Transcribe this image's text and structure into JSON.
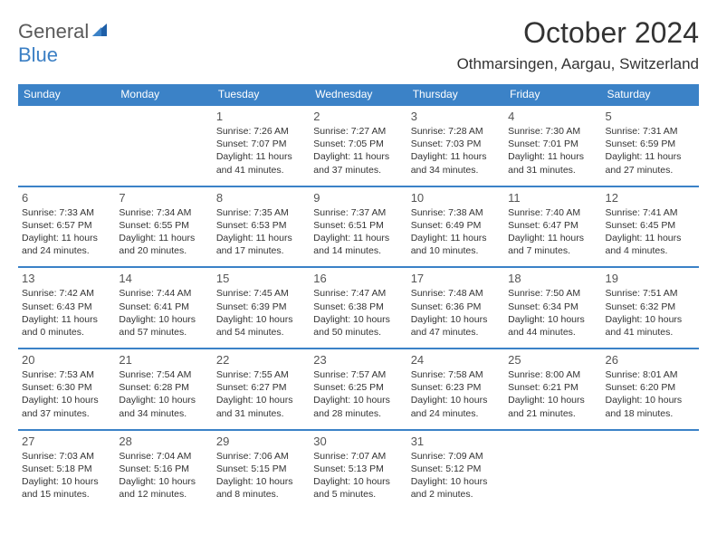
{
  "logo": {
    "text1": "General",
    "text2": "Blue"
  },
  "title": "October 2024",
  "location": "Othmarsingen, Aargau, Switzerland",
  "colors": {
    "header_bg": "#3b82c7",
    "header_text": "#ffffff",
    "border": "#3b82c7",
    "logo_gray": "#5a5a5a",
    "logo_blue": "#3b7fc4",
    "text": "#333333",
    "background": "#ffffff"
  },
  "weekdays": [
    "Sunday",
    "Monday",
    "Tuesday",
    "Wednesday",
    "Thursday",
    "Friday",
    "Saturday"
  ],
  "weeks": [
    [
      null,
      null,
      {
        "n": "1",
        "sr": "Sunrise: 7:26 AM",
        "ss": "Sunset: 7:07 PM",
        "dl": "Daylight: 11 hours and 41 minutes."
      },
      {
        "n": "2",
        "sr": "Sunrise: 7:27 AM",
        "ss": "Sunset: 7:05 PM",
        "dl": "Daylight: 11 hours and 37 minutes."
      },
      {
        "n": "3",
        "sr": "Sunrise: 7:28 AM",
        "ss": "Sunset: 7:03 PM",
        "dl": "Daylight: 11 hours and 34 minutes."
      },
      {
        "n": "4",
        "sr": "Sunrise: 7:30 AM",
        "ss": "Sunset: 7:01 PM",
        "dl": "Daylight: 11 hours and 31 minutes."
      },
      {
        "n": "5",
        "sr": "Sunrise: 7:31 AM",
        "ss": "Sunset: 6:59 PM",
        "dl": "Daylight: 11 hours and 27 minutes."
      }
    ],
    [
      {
        "n": "6",
        "sr": "Sunrise: 7:33 AM",
        "ss": "Sunset: 6:57 PM",
        "dl": "Daylight: 11 hours and 24 minutes."
      },
      {
        "n": "7",
        "sr": "Sunrise: 7:34 AM",
        "ss": "Sunset: 6:55 PM",
        "dl": "Daylight: 11 hours and 20 minutes."
      },
      {
        "n": "8",
        "sr": "Sunrise: 7:35 AM",
        "ss": "Sunset: 6:53 PM",
        "dl": "Daylight: 11 hours and 17 minutes."
      },
      {
        "n": "9",
        "sr": "Sunrise: 7:37 AM",
        "ss": "Sunset: 6:51 PM",
        "dl": "Daylight: 11 hours and 14 minutes."
      },
      {
        "n": "10",
        "sr": "Sunrise: 7:38 AM",
        "ss": "Sunset: 6:49 PM",
        "dl": "Daylight: 11 hours and 10 minutes."
      },
      {
        "n": "11",
        "sr": "Sunrise: 7:40 AM",
        "ss": "Sunset: 6:47 PM",
        "dl": "Daylight: 11 hours and 7 minutes."
      },
      {
        "n": "12",
        "sr": "Sunrise: 7:41 AM",
        "ss": "Sunset: 6:45 PM",
        "dl": "Daylight: 11 hours and 4 minutes."
      }
    ],
    [
      {
        "n": "13",
        "sr": "Sunrise: 7:42 AM",
        "ss": "Sunset: 6:43 PM",
        "dl": "Daylight: 11 hours and 0 minutes."
      },
      {
        "n": "14",
        "sr": "Sunrise: 7:44 AM",
        "ss": "Sunset: 6:41 PM",
        "dl": "Daylight: 10 hours and 57 minutes."
      },
      {
        "n": "15",
        "sr": "Sunrise: 7:45 AM",
        "ss": "Sunset: 6:39 PM",
        "dl": "Daylight: 10 hours and 54 minutes."
      },
      {
        "n": "16",
        "sr": "Sunrise: 7:47 AM",
        "ss": "Sunset: 6:38 PM",
        "dl": "Daylight: 10 hours and 50 minutes."
      },
      {
        "n": "17",
        "sr": "Sunrise: 7:48 AM",
        "ss": "Sunset: 6:36 PM",
        "dl": "Daylight: 10 hours and 47 minutes."
      },
      {
        "n": "18",
        "sr": "Sunrise: 7:50 AM",
        "ss": "Sunset: 6:34 PM",
        "dl": "Daylight: 10 hours and 44 minutes."
      },
      {
        "n": "19",
        "sr": "Sunrise: 7:51 AM",
        "ss": "Sunset: 6:32 PM",
        "dl": "Daylight: 10 hours and 41 minutes."
      }
    ],
    [
      {
        "n": "20",
        "sr": "Sunrise: 7:53 AM",
        "ss": "Sunset: 6:30 PM",
        "dl": "Daylight: 10 hours and 37 minutes."
      },
      {
        "n": "21",
        "sr": "Sunrise: 7:54 AM",
        "ss": "Sunset: 6:28 PM",
        "dl": "Daylight: 10 hours and 34 minutes."
      },
      {
        "n": "22",
        "sr": "Sunrise: 7:55 AM",
        "ss": "Sunset: 6:27 PM",
        "dl": "Daylight: 10 hours and 31 minutes."
      },
      {
        "n": "23",
        "sr": "Sunrise: 7:57 AM",
        "ss": "Sunset: 6:25 PM",
        "dl": "Daylight: 10 hours and 28 minutes."
      },
      {
        "n": "24",
        "sr": "Sunrise: 7:58 AM",
        "ss": "Sunset: 6:23 PM",
        "dl": "Daylight: 10 hours and 24 minutes."
      },
      {
        "n": "25",
        "sr": "Sunrise: 8:00 AM",
        "ss": "Sunset: 6:21 PM",
        "dl": "Daylight: 10 hours and 21 minutes."
      },
      {
        "n": "26",
        "sr": "Sunrise: 8:01 AM",
        "ss": "Sunset: 6:20 PM",
        "dl": "Daylight: 10 hours and 18 minutes."
      }
    ],
    [
      {
        "n": "27",
        "sr": "Sunrise: 7:03 AM",
        "ss": "Sunset: 5:18 PM",
        "dl": "Daylight: 10 hours and 15 minutes."
      },
      {
        "n": "28",
        "sr": "Sunrise: 7:04 AM",
        "ss": "Sunset: 5:16 PM",
        "dl": "Daylight: 10 hours and 12 minutes."
      },
      {
        "n": "29",
        "sr": "Sunrise: 7:06 AM",
        "ss": "Sunset: 5:15 PM",
        "dl": "Daylight: 10 hours and 8 minutes."
      },
      {
        "n": "30",
        "sr": "Sunrise: 7:07 AM",
        "ss": "Sunset: 5:13 PM",
        "dl": "Daylight: 10 hours and 5 minutes."
      },
      {
        "n": "31",
        "sr": "Sunrise: 7:09 AM",
        "ss": "Sunset: 5:12 PM",
        "dl": "Daylight: 10 hours and 2 minutes."
      },
      null,
      null
    ]
  ]
}
